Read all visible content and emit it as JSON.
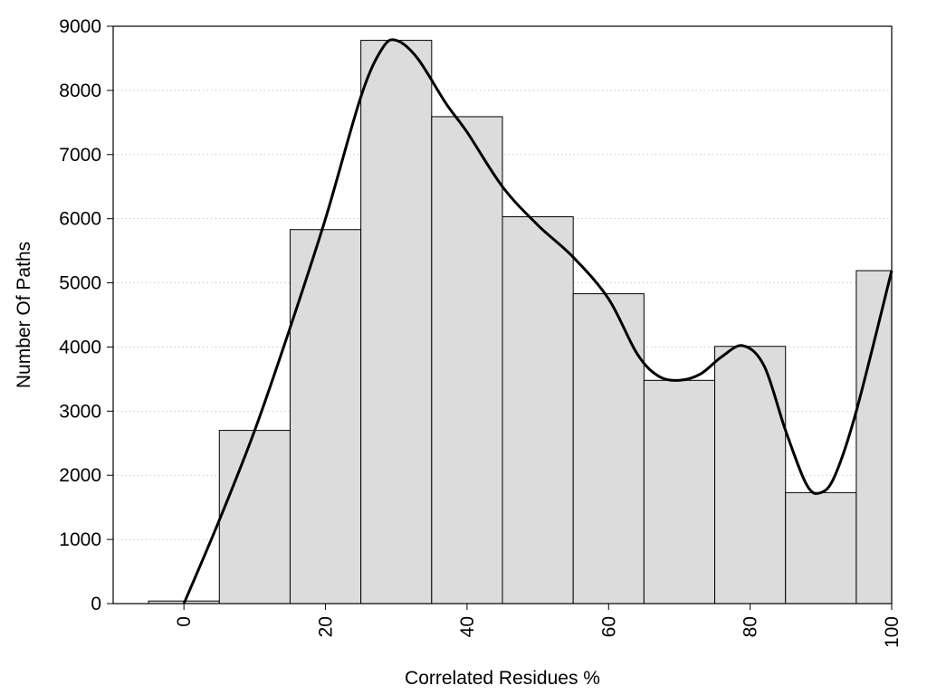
{
  "chart_data": {
    "type": "bar",
    "title": "",
    "xlabel": "Correlated Residues %",
    "ylabel": "Number Of Paths",
    "xlim": [
      -10,
      100
    ],
    "ylim": [
      0,
      9000
    ],
    "x_ticks": [
      0,
      20,
      40,
      60,
      80,
      100
    ],
    "y_ticks": [
      0,
      1000,
      2000,
      3000,
      4000,
      5000,
      6000,
      7000,
      8000,
      9000
    ],
    "bin_width": 10,
    "bars": [
      {
        "x": 0,
        "value": 40
      },
      {
        "x": 10,
        "value": 2700
      },
      {
        "x": 20,
        "value": 5830
      },
      {
        "x": 30,
        "value": 8780
      },
      {
        "x": 40,
        "value": 7590
      },
      {
        "x": 50,
        "value": 6030
      },
      {
        "x": 60,
        "value": 4830
      },
      {
        "x": 70,
        "value": 3480
      },
      {
        "x": 80,
        "value": 4010
      },
      {
        "x": 90,
        "value": 1730
      },
      {
        "x": 100,
        "value": 5190
      }
    ],
    "curve": [
      {
        "x": 0,
        "y": 0
      },
      {
        "x": 5,
        "y": 1300
      },
      {
        "x": 10,
        "y": 2700
      },
      {
        "x": 15,
        "y": 4300
      },
      {
        "x": 20,
        "y": 6000
      },
      {
        "x": 25,
        "y": 7900
      },
      {
        "x": 28,
        "y": 8650
      },
      {
        "x": 30,
        "y": 8780
      },
      {
        "x": 33,
        "y": 8500
      },
      {
        "x": 37,
        "y": 7800
      },
      {
        "x": 40,
        "y": 7350
      },
      {
        "x": 45,
        "y": 6500
      },
      {
        "x": 50,
        "y": 5900
      },
      {
        "x": 55,
        "y": 5400
      },
      {
        "x": 60,
        "y": 4750
      },
      {
        "x": 64,
        "y": 3900
      },
      {
        "x": 67,
        "y": 3550
      },
      {
        "x": 70,
        "y": 3480
      },
      {
        "x": 73,
        "y": 3580
      },
      {
        "x": 76,
        "y": 3850
      },
      {
        "x": 79,
        "y": 4020
      },
      {
        "x": 82,
        "y": 3700
      },
      {
        "x": 85,
        "y": 2700
      },
      {
        "x": 88,
        "y": 1850
      },
      {
        "x": 90,
        "y": 1730
      },
      {
        "x": 92,
        "y": 2000
      },
      {
        "x": 95,
        "y": 3000
      },
      {
        "x": 100,
        "y": 5190
      }
    ],
    "grid": "horizontal dotted",
    "colors": {
      "bar_fill": "#dcdcdc",
      "bar_stroke": "#000000",
      "curve": "#000000",
      "grid": "#cccccc"
    }
  }
}
